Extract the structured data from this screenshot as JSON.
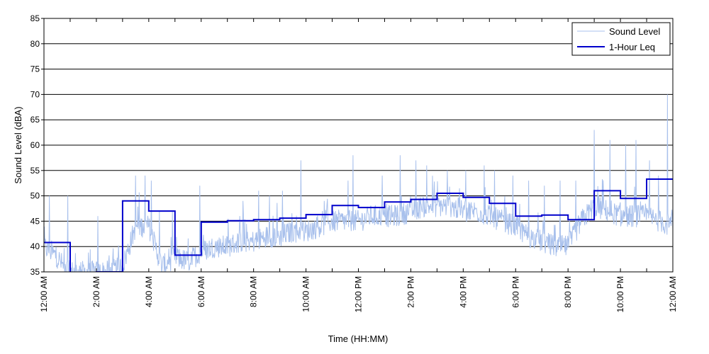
{
  "chart_data": {
    "type": "line",
    "xlabel": "Time (HH:MM)",
    "ylabel": "Sound Level (dBA)",
    "ylim": [
      35,
      85
    ],
    "y_ticks": [
      35,
      40,
      45,
      50,
      55,
      60,
      65,
      70,
      75,
      80,
      85
    ],
    "x_ticks": [
      "12:00 AM",
      "2:00 AM",
      "4:00 AM",
      "6:00 AM",
      "8:00 AM",
      "10:00 AM",
      "12:00 PM",
      "2:00 PM",
      "4:00 PM",
      "6:00 PM",
      "8:00 PM",
      "10:00 PM",
      "12:00 AM"
    ],
    "x_unit": "hours since midnight",
    "xlim": [
      0,
      24
    ],
    "grid": "horizontal",
    "legend_position": "top-right",
    "series": [
      {
        "name": "Sound Level",
        "color": "#a8c0ec",
        "style": "thin line",
        "anchor_hours": [
          0,
          0.25,
          0.5,
          0.75,
          1,
          1.5,
          2,
          2.5,
          3,
          3.25,
          3.5,
          4,
          4.5,
          5,
          5.5,
          6,
          6.5,
          7,
          7.5,
          8,
          8.5,
          9,
          9.5,
          10,
          10.5,
          11,
          11.5,
          12,
          12.5,
          13,
          13.5,
          14,
          14.5,
          15,
          15.5,
          16,
          16.5,
          17,
          17.5,
          18,
          18.5,
          19,
          19.5,
          20,
          20.5,
          21,
          21.5,
          22,
          22.5,
          23,
          23.5,
          24
        ],
        "anchor_levels": [
          40,
          39,
          38,
          36,
          35,
          35,
          35,
          35,
          36,
          40,
          44,
          44,
          36,
          38,
          37,
          39,
          40,
          40,
          41,
          41,
          42,
          42,
          43,
          43,
          44,
          45,
          45,
          45,
          46,
          46,
          46,
          47,
          48,
          48,
          48,
          47,
          47,
          46,
          45,
          44,
          42,
          41,
          40,
          40,
          45,
          48,
          47,
          46,
          46,
          46,
          45,
          44
        ],
        "peaks": [
          [
            0.2,
            50
          ],
          [
            0.9,
            50
          ],
          [
            2.05,
            46
          ],
          [
            3.5,
            54
          ],
          [
            3.85,
            54
          ],
          [
            4.1,
            53
          ],
          [
            4.4,
            47
          ],
          [
            4.9,
            47
          ],
          [
            5.95,
            52
          ],
          [
            7.6,
            49
          ],
          [
            8.2,
            51
          ],
          [
            8.6,
            50
          ],
          [
            9.1,
            51
          ],
          [
            9.8,
            57
          ],
          [
            10.7,
            49
          ],
          [
            11.6,
            53
          ],
          [
            11.8,
            58
          ],
          [
            12.9,
            54
          ],
          [
            13.6,
            58
          ],
          [
            14.2,
            57
          ],
          [
            14.6,
            56
          ],
          [
            15.4,
            55
          ],
          [
            16.1,
            55
          ],
          [
            16.8,
            56
          ],
          [
            17.2,
            55
          ],
          [
            17.9,
            54
          ],
          [
            18.5,
            53
          ],
          [
            19.1,
            52
          ],
          [
            19.7,
            53
          ],
          [
            20.3,
            53
          ],
          [
            21.0,
            63
          ],
          [
            21.6,
            61
          ],
          [
            22.2,
            60
          ],
          [
            22.6,
            61
          ],
          [
            23.1,
            57
          ],
          [
            23.45,
            54
          ],
          [
            23.8,
            70
          ]
        ]
      },
      {
        "name": "1-Hour Leq",
        "color": "#0000cc",
        "style": "step",
        "hour_starts": [
          0,
          1,
          2,
          3,
          4,
          5,
          6,
          7,
          8,
          9,
          10,
          11,
          12,
          13,
          14,
          15,
          16,
          17,
          18,
          19,
          20,
          21,
          22,
          23
        ],
        "values": [
          40.8,
          32.0,
          35.0,
          49.0,
          47.0,
          38.3,
          44.8,
          45.1,
          45.3,
          45.6,
          46.3,
          48.1,
          47.7,
          48.8,
          49.3,
          50.5,
          49.7,
          48.5,
          46.0,
          46.2,
          45.3,
          51.0,
          49.5,
          53.3
        ]
      }
    ]
  }
}
